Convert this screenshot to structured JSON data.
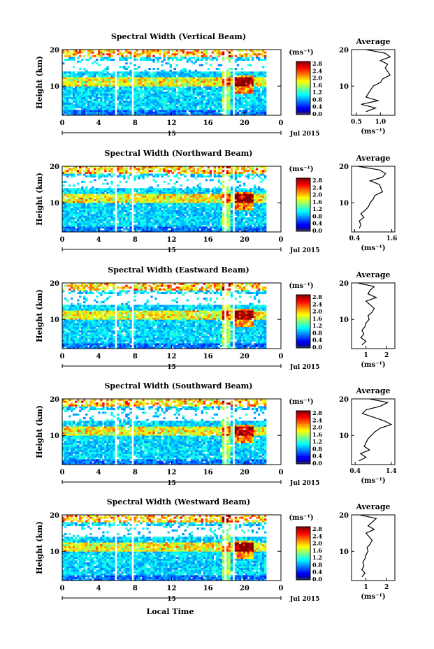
{
  "date_label": "Jul 2015",
  "day_label": "15",
  "x_axis_label": "Local Time",
  "height_axis_label": "Height (km)",
  "units_label": "(ms⁻¹)",
  "average_title": "Average",
  "colorbar_ticks": [
    "2.8",
    "2.4",
    "2.0",
    "1.6",
    "1.2",
    "0.8",
    "0.4",
    "0.0"
  ],
  "chart_data": [
    {
      "type": "heatmap",
      "title": "Spectral Width (Vertical Beam)",
      "xlabel": "",
      "ylabel": "Height (km)",
      "x_ticks": [
        "0",
        "4",
        "8",
        "12",
        "16",
        "20",
        "0"
      ],
      "y_ticks": [
        "10",
        "20"
      ],
      "xlim": [
        0,
        24
      ],
      "ylim": [
        2,
        20
      ],
      "colorbar": {
        "range": [
          0.0,
          2.8
        ],
        "unit": "ms-1"
      },
      "data_gaps_hours": [
        [
          5.7,
          6.0
        ],
        [
          7.6,
          7.9
        ],
        [
          17.8,
          18.1
        ],
        [
          18.6,
          18.9
        ]
      ],
      "average": {
        "xlabel": "(ms⁻¹)",
        "x_ticks": [
          "0.5",
          "1.0"
        ],
        "xlim": [
          0.4,
          1.3
        ],
        "y_ticks": [
          "10",
          "20"
        ],
        "heights": [
          3,
          4,
          5,
          6,
          7,
          8,
          9,
          10,
          11,
          12,
          13,
          14,
          15,
          16,
          17,
          18,
          19,
          20
        ],
        "values": [
          0.7,
          0.9,
          0.6,
          0.95,
          0.7,
          0.75,
          0.8,
          0.85,
          1.0,
          1.05,
          1.2,
          1.15,
          1.1,
          1.15,
          1.0,
          1.2,
          1.1,
          0.7
        ]
      }
    },
    {
      "type": "heatmap",
      "title": "Spectral Width (Northward Beam)",
      "xlabel": "",
      "ylabel": "Height (km)",
      "x_ticks": [
        "0",
        "4",
        "8",
        "12",
        "16",
        "20",
        "0"
      ],
      "y_ticks": [
        "10",
        "20"
      ],
      "xlim": [
        0,
        24
      ],
      "ylim": [
        2,
        20
      ],
      "colorbar": {
        "range": [
          0.0,
          2.8
        ],
        "unit": "ms-1"
      },
      "data_gaps_hours": [
        [
          5.7,
          6.0
        ],
        [
          7.6,
          7.9
        ],
        [
          17.8,
          18.1
        ],
        [
          18.6,
          18.9
        ]
      ],
      "average": {
        "xlabel": "(ms⁻¹)",
        "x_ticks": [
          "0.4",
          "1.6"
        ],
        "xlim": [
          0.3,
          1.7
        ],
        "y_ticks": [
          "10",
          "20"
        ],
        "heights": [
          3,
          4,
          5,
          6,
          7,
          8,
          9,
          10,
          11,
          12,
          13,
          14,
          15,
          16,
          17,
          18,
          19,
          20
        ],
        "values": [
          0.55,
          0.6,
          0.55,
          0.7,
          0.6,
          0.75,
          0.85,
          0.9,
          1.0,
          1.05,
          1.3,
          1.25,
          1.2,
          0.9,
          1.3,
          1.4,
          1.2,
          0.5
        ]
      }
    },
    {
      "type": "heatmap",
      "title": "Spectral Width (Eastward Beam)",
      "xlabel": "",
      "ylabel": "Height (km)",
      "x_ticks": [
        "0",
        "4",
        "8",
        "12",
        "16",
        "20",
        "0"
      ],
      "y_ticks": [
        "10",
        "20"
      ],
      "xlim": [
        0,
        24
      ],
      "ylim": [
        2,
        20
      ],
      "colorbar": {
        "range": [
          0.0,
          2.8
        ],
        "unit": "ms-1"
      },
      "data_gaps_hours": [
        [
          5.7,
          6.0
        ],
        [
          7.6,
          7.9
        ],
        [
          17.8,
          18.1
        ],
        [
          18.6,
          18.9
        ]
      ],
      "average": {
        "xlabel": "(ms⁻¹)",
        "x_ticks": [
          "1",
          "2"
        ],
        "xlim": [
          0.3,
          2.4
        ],
        "y_ticks": [
          "10",
          "20"
        ],
        "heights": [
          3,
          4,
          5,
          6,
          7,
          8,
          9,
          10,
          11,
          12,
          13,
          14,
          15,
          16,
          17,
          18,
          19,
          20
        ],
        "values": [
          0.8,
          1.0,
          0.75,
          0.9,
          0.8,
          0.95,
          1.0,
          1.15,
          1.1,
          1.3,
          1.4,
          1.2,
          1.0,
          1.5,
          1.1,
          1.2,
          1.4,
          0.6
        ]
      }
    },
    {
      "type": "heatmap",
      "title": "Spectral Width (Southward Beam)",
      "xlabel": "",
      "ylabel": "Height (km)",
      "x_ticks": [
        "0",
        "4",
        "8",
        "12",
        "16",
        "20",
        "0"
      ],
      "y_ticks": [
        "10",
        "20"
      ],
      "xlim": [
        0,
        24
      ],
      "ylim": [
        2,
        20
      ],
      "colorbar": {
        "range": [
          0.0,
          2.8
        ],
        "unit": "ms-1"
      },
      "data_gaps_hours": [
        [
          5.7,
          6.0
        ],
        [
          7.6,
          7.9
        ],
        [
          17.8,
          18.1
        ],
        [
          18.6,
          18.9
        ]
      ],
      "average": {
        "xlabel": "(ms⁻¹)",
        "x_ticks": [
          "0.4",
          "1.4"
        ],
        "xlim": [
          0.3,
          1.5
        ],
        "y_ticks": [
          "10",
          "20"
        ],
        "heights": [
          3,
          4,
          5,
          6,
          7,
          8,
          9,
          10,
          11,
          12,
          13,
          14,
          15,
          16,
          17,
          18,
          19,
          20
        ],
        "values": [
          0.5,
          0.7,
          0.55,
          0.8,
          0.65,
          0.7,
          0.75,
          0.85,
          0.95,
          1.1,
          1.4,
          1.2,
          0.9,
          0.6,
          0.7,
          1.1,
          1.3,
          0.8
        ]
      }
    },
    {
      "type": "heatmap",
      "title": "Spectral Width (Westward Beam)",
      "xlabel": "Local Time",
      "ylabel": "Height (km)",
      "x_ticks": [
        "0",
        "4",
        "8",
        "12",
        "16",
        "20",
        "0"
      ],
      "y_ticks": [
        "10",
        "20"
      ],
      "xlim": [
        0,
        24
      ],
      "ylim": [
        2,
        20
      ],
      "colorbar": {
        "range": [
          0.0,
          2.8
        ],
        "unit": "ms-1"
      },
      "data_gaps_hours": [
        [
          5.7,
          6.0
        ],
        [
          7.6,
          7.9
        ],
        [
          17.8,
          18.1
        ],
        [
          18.6,
          18.9
        ]
      ],
      "average": {
        "xlabel": "(ms⁻¹)",
        "x_ticks": [
          "1",
          "2"
        ],
        "xlim": [
          0.3,
          2.4
        ],
        "y_ticks": [
          "10",
          "20"
        ],
        "heights": [
          3,
          4,
          5,
          6,
          7,
          8,
          9,
          10,
          11,
          12,
          13,
          14,
          15,
          16,
          17,
          18,
          19,
          20
        ],
        "values": [
          0.8,
          0.95,
          0.8,
          0.9,
          0.85,
          0.95,
          1.0,
          1.1,
          1.05,
          1.2,
          1.3,
          1.15,
          1.0,
          1.4,
          1.1,
          1.3,
          1.5,
          0.7
        ]
      }
    }
  ]
}
